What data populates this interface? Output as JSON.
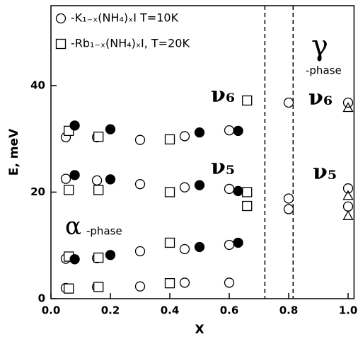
{
  "chart_data": {
    "type": "scatter",
    "x_label": "X",
    "y_label": "E, meV",
    "xlim": [
      0,
      1.02
    ],
    "ylim": [
      0,
      55
    ],
    "xticks": [
      {
        "value": 0,
        "label": "0.0"
      },
      0.2,
      0.4,
      0.6,
      0.8,
      {
        "value": 1,
        "label": "1.0"
      }
    ],
    "yticks": [
      0,
      20,
      40
    ],
    "vlines": [
      0.72,
      0.815
    ],
    "legend": "upper left",
    "annotations": [
      "ν₆",
      "ν₅",
      "ν₆",
      "ν₅",
      "α",
      "-phase",
      "γ",
      "-phase"
    ],
    "series": [
      {
        "name": "-K₁₋ₓ(NH₄)ₓI  T=10K",
        "marker": "circle",
        "color": "#000000",
        "x": [
          0.05,
          0.05,
          0.05,
          0.05,
          0.155,
          0.155,
          0.155,
          0.155,
          0.3,
          0.3,
          0.3,
          0.3,
          0.45,
          0.45,
          0.45,
          0.45,
          0.6,
          0.6,
          0.6,
          0.6,
          0.8,
          0.8,
          0.8,
          1.0,
          1.0,
          1.0
        ],
        "values": [
          30.3,
          22.5,
          7.5,
          2.0,
          30.3,
          22.2,
          7.6,
          2.2,
          29.8,
          21.5,
          8.9,
          2.3,
          30.5,
          20.9,
          9.3,
          3.0,
          31.6,
          20.6,
          10.1,
          3.0,
          36.8,
          18.8,
          16.8,
          36.8,
          20.7,
          17.3
        ]
      },
      {
        "name": "-Rb₁₋ₓ(NH₄)ₓI,  T=20K",
        "marker": "square",
        "color": "#000000",
        "x": [
          0.06,
          0.06,
          0.06,
          0.06,
          0.16,
          0.16,
          0.16,
          0.16,
          0.4,
          0.4,
          0.4,
          0.4,
          0.66,
          0.66,
          0.66
        ],
        "values": [
          31.5,
          20.4,
          7.9,
          1.9,
          30.4,
          20.4,
          7.7,
          2.2,
          29.9,
          20.0,
          10.5,
          2.9,
          37.2,
          20.0,
          17.4
        ]
      },
      {
        "marker": "filled-circle",
        "color": "#000000",
        "x": [
          0.08,
          0.08,
          0.08,
          0.2,
          0.2,
          0.2,
          0.5,
          0.5,
          0.5,
          0.63,
          0.63,
          0.63
        ],
        "values": [
          32.5,
          23.2,
          7.4,
          31.8,
          22.4,
          8.2,
          31.2,
          21.3,
          9.7,
          31.5,
          20.2,
          10.5
        ]
      },
      {
        "marker": "triangle",
        "color": "#000000",
        "x": [
          1.0,
          1.0,
          1.0
        ],
        "values": [
          35.8,
          19.3,
          15.5
        ]
      }
    ]
  }
}
